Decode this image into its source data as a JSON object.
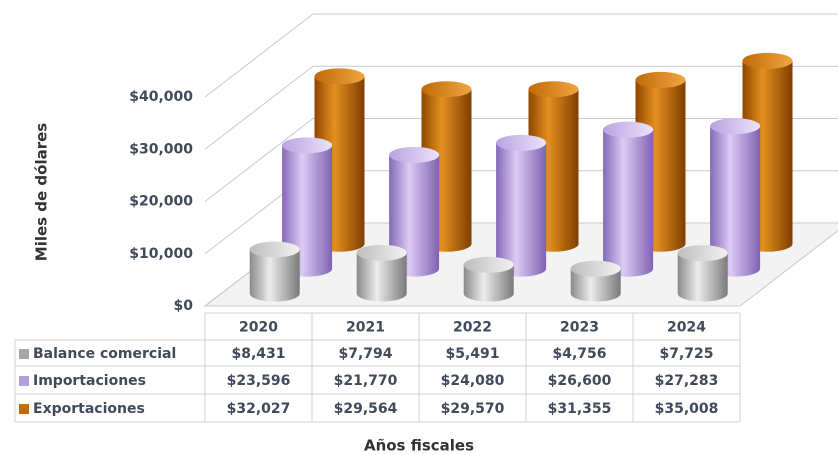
{
  "chart_data": {
    "type": "bar3d",
    "y_label": "Miles de dólares",
    "x_label": "Años fiscales",
    "categories": [
      "2020",
      "2021",
      "2022",
      "2023",
      "2024"
    ],
    "series": [
      {
        "name": "Balance comercial",
        "color": "#a6a6a6",
        "values": [
          8431,
          7794,
          5491,
          4756,
          7725
        ],
        "value_labels": [
          "$8,431",
          "$7,794",
          "$5,491",
          "$4,756",
          "$7,725"
        ]
      },
      {
        "name": "Importaciones",
        "color": "#b4a0dc",
        "values": [
          23596,
          21770,
          24080,
          26600,
          27283
        ],
        "value_labels": [
          "$23,596",
          "$21,770",
          "$24,080",
          "$26,600",
          "$27,283"
        ]
      },
      {
        "name": "Exportaciones",
        "color": "#c46a0a",
        "values": [
          32027,
          29564,
          29570,
          31355,
          35008
        ],
        "value_labels": [
          "$32,027",
          "$29,564",
          "$29,570",
          "$31,355",
          "$35,008"
        ]
      }
    ],
    "ylim": [
      0,
      40000
    ],
    "yticks": [
      {
        "value": 0,
        "label": "$0"
      },
      {
        "value": 10000,
        "label": "$10,000"
      },
      {
        "value": 20000,
        "label": "$20,000"
      },
      {
        "value": 30000,
        "label": "$30,000"
      },
      {
        "value": 40000,
        "label": "$40,000"
      }
    ],
    "grid": true
  }
}
